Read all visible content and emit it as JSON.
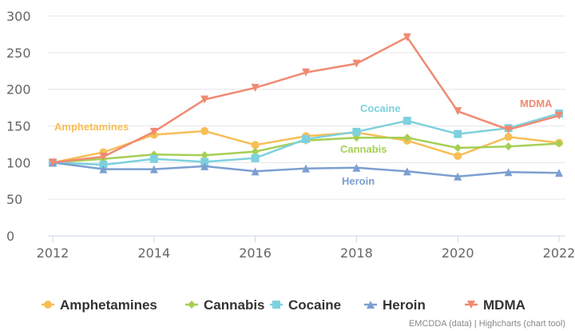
{
  "chart_data": {
    "type": "line",
    "x": [
      2012,
      2013,
      2014,
      2015,
      2016,
      2017,
      2018,
      2019,
      2020,
      2021,
      2022
    ],
    "x_ticks": [
      "2012",
      "2014",
      "2016",
      "2018",
      "2020",
      "2022"
    ],
    "y_ticks": [
      "0",
      "50",
      "100",
      "150",
      "200",
      "250",
      "300"
    ],
    "ylim": [
      0,
      300
    ],
    "xlim": [
      2012,
      2022
    ],
    "grid": true,
    "legend": "bottom",
    "series": [
      {
        "name": "Amphetamines",
        "color": "#f7be56",
        "marker": "circle",
        "label": "Amphetamines",
        "values": [
          100,
          114,
          138,
          143,
          124,
          136,
          141,
          130,
          109,
          135,
          127
        ]
      },
      {
        "name": "Cannabis",
        "color": "#a6cf55",
        "marker": "diamond",
        "label": "Cannabis",
        "values": [
          100,
          105,
          111,
          110,
          115,
          130,
          134,
          134,
          120,
          122,
          126
        ]
      },
      {
        "name": "Cocaine",
        "color": "#7ed1dd",
        "marker": "square",
        "label": "Cocaine",
        "values": [
          100,
          97,
          105,
          101,
          106,
          132,
          142,
          157,
          139,
          147,
          167
        ]
      },
      {
        "name": "Heroin",
        "color": "#7c9fd1",
        "marker": "triangle-up",
        "label": "Heroin",
        "values": [
          100,
          91,
          91,
          95,
          88,
          92,
          93,
          88,
          81,
          87,
          86
        ]
      },
      {
        "name": "MDMA",
        "color": "#f08a72",
        "marker": "triangle-down",
        "label": "MDMA",
        "values": [
          100,
          108,
          142,
          186,
          202,
          223,
          235,
          271,
          170,
          145,
          164
        ]
      }
    ],
    "credits": "EMCDDA (data) | Highcharts (chart tool)"
  }
}
